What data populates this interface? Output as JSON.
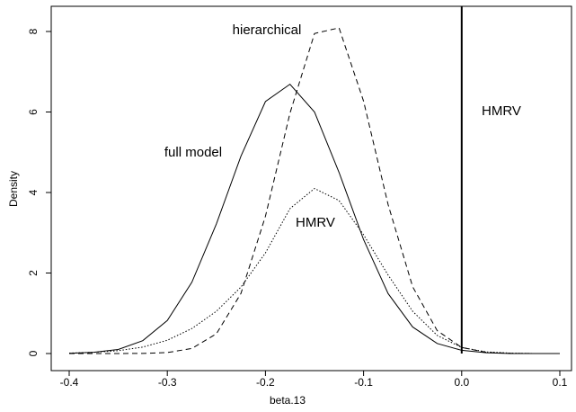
{
  "chart_data": {
    "type": "line",
    "x_label": "beta.13",
    "y_label": "Density",
    "x": [
      -0.4,
      -0.375,
      -0.35,
      -0.325,
      -0.3,
      -0.275,
      -0.25,
      -0.225,
      -0.2,
      -0.175,
      -0.15,
      -0.125,
      -0.1,
      -0.075,
      -0.05,
      -0.025,
      0,
      0.025,
      0.05,
      0.075,
      0.1
    ],
    "series": [
      {
        "name": "full model",
        "color": "#000000",
        "dash": "none",
        "values": [
          0.006,
          0.03,
          0.1,
          0.32,
          0.82,
          1.77,
          3.22,
          4.9,
          6.26,
          6.69,
          6.0,
          4.5,
          2.83,
          1.49,
          0.66,
          0.25,
          0.08,
          0.02,
          0.0,
          0.0,
          0.0
        ]
      },
      {
        "name": "hierarchical",
        "color": "#000000",
        "dash": "6 4",
        "values": [
          0,
          0,
          0.0004,
          0.0036,
          0.024,
          0.125,
          0.49,
          1.49,
          3.41,
          5.97,
          7.95,
          8.09,
          6.27,
          3.7,
          1.66,
          0.57,
          0.15,
          0.03,
          0.005,
          0,
          0
        ]
      },
      {
        "name": "HMRV",
        "color": "#000000",
        "dash": "1.5 2",
        "values": [
          0.01,
          0.03,
          0.07,
          0.16,
          0.33,
          0.62,
          1.05,
          1.65,
          2.5,
          3.6,
          4.1,
          3.8,
          2.95,
          1.95,
          1.05,
          0.45,
          0.15,
          0.04,
          0.01,
          0,
          0
        ]
      }
    ],
    "point_mass_x": 0,
    "annotations": [
      "hierarchical",
      "full model",
      "HMRV",
      "HMRV"
    ],
    "xlim": [
      -0.4,
      0.1
    ],
    "ylim": [
      0,
      8
    ],
    "xticks": [
      -0.4,
      -0.3,
      -0.2,
      -0.1,
      {
        "value": 0,
        "label": "0.0"
      },
      0.1
    ],
    "yticks": [
      0,
      2,
      4,
      6,
      8
    ]
  }
}
